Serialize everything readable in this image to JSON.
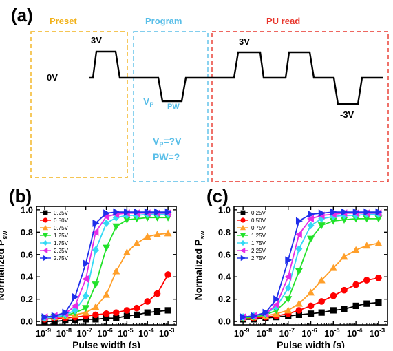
{
  "panel_a": {
    "label": "(a)",
    "sections": [
      {
        "title": "Preset",
        "color": "#F2B21B"
      },
      {
        "title": "Program",
        "color": "#58BEE8"
      },
      {
        "title": "PU read",
        "color": "#E8352B"
      }
    ],
    "annotations": {
      "zero_v": "0V",
      "preset_pulse": "3V",
      "read_pos": "3V",
      "read_neg": "-3V",
      "vp_main": "V",
      "vp_sub": "P",
      "pw_label": "PW",
      "vp_q_main": "V",
      "vp_q_sub": "P",
      "vp_q_rest": "=?V",
      "pw_q": "PW=?"
    }
  },
  "chart_data": [
    {
      "type": "line",
      "panel_label": "(b)",
      "xlabel": "Pulse width (s)",
      "ylabel_main": "Normalized P",
      "ylabel_sub": "sw",
      "xscale": "log",
      "x": [
        1e-09,
        3e-09,
        1e-08,
        3e-08,
        1e-07,
        3e-07,
        1e-06,
        3e-06,
        1e-05,
        3e-05,
        0.0001,
        0.0003,
        0.001
      ],
      "xlim": [
        3.98e-10,
        0.0025
      ],
      "ylim": [
        -0.03,
        1.03
      ],
      "xticks": [
        "10^-9",
        "10^-8",
        "10^-7",
        "10^-6",
        "10^-5",
        "10^-4",
        "10^-3"
      ],
      "yticks": [
        "0.0",
        "0.2",
        "0.4",
        "0.6",
        "0.8",
        "1.0"
      ],
      "legend_placement": "top-left",
      "series": [
        {
          "name": "0.25V",
          "color": "#000000",
          "marker": "square",
          "values": [
            0.0,
            0.0,
            0.01,
            0.01,
            0.02,
            0.02,
            0.03,
            0.03,
            0.05,
            0.06,
            0.08,
            0.09,
            0.1
          ]
        },
        {
          "name": "0.50V",
          "color": "#FF0000",
          "marker": "circle",
          "values": [
            0.02,
            0.03,
            0.03,
            0.04,
            0.05,
            0.06,
            0.07,
            0.08,
            0.1,
            0.12,
            0.18,
            0.25,
            0.42
          ]
        },
        {
          "name": "0.75V",
          "color": "#FF9F2A",
          "marker": "triangle-up",
          "values": [
            0.03,
            0.04,
            0.05,
            0.06,
            0.08,
            0.13,
            0.24,
            0.45,
            0.62,
            0.7,
            0.76,
            0.78,
            0.79
          ]
        },
        {
          "name": "1.25V",
          "color": "#22E22A",
          "marker": "triangle-down",
          "values": [
            0.03,
            0.04,
            0.05,
            0.08,
            0.12,
            0.33,
            0.66,
            0.85,
            0.91,
            0.92,
            0.93,
            0.93,
            0.93
          ]
        },
        {
          "name": "1.75V",
          "color": "#33D9F5",
          "marker": "diamond",
          "values": [
            0.03,
            0.04,
            0.06,
            0.1,
            0.23,
            0.64,
            0.88,
            0.93,
            0.95,
            0.95,
            0.96,
            0.96,
            0.96
          ]
        },
        {
          "name": "2.25V",
          "color": "#E62BE6",
          "marker": "triangle-left",
          "values": [
            0.04,
            0.05,
            0.07,
            0.14,
            0.38,
            0.8,
            0.94,
            0.96,
            0.97,
            0.97,
            0.97,
            0.97,
            0.97
          ]
        },
        {
          "name": "2.75V",
          "color": "#1F2FEB",
          "marker": "triangle-right",
          "values": [
            0.04,
            0.05,
            0.08,
            0.22,
            0.52,
            0.88,
            0.97,
            0.98,
            0.98,
            0.98,
            0.98,
            0.98,
            0.98
          ]
        }
      ]
    },
    {
      "type": "line",
      "panel_label": "(c)",
      "xlabel": "Pulse width (s)",
      "ylabel_main": "Normalized P",
      "ylabel_sub": "sw",
      "xscale": "log",
      "x": [
        1e-09,
        3e-09,
        1e-08,
        3e-08,
        1e-07,
        3e-07,
        1e-06,
        3e-06,
        1e-05,
        3e-05,
        0.0001,
        0.0003,
        0.001
      ],
      "xlim": [
        3.98e-10,
        0.0025
      ],
      "ylim": [
        -0.03,
        1.03
      ],
      "xticks": [
        "10^-9",
        "10^-8",
        "10^-7",
        "10^-6",
        "10^-5",
        "10^-4",
        "10^-3"
      ],
      "yticks": [
        "0.0",
        "0.2",
        "0.4",
        "0.6",
        "0.8",
        "1.0"
      ],
      "legend_placement": "top-left",
      "series": [
        {
          "name": "0.25V",
          "color": "#000000",
          "marker": "square",
          "values": [
            0.02,
            0.02,
            0.03,
            0.04,
            0.05,
            0.06,
            0.07,
            0.08,
            0.1,
            0.11,
            0.14,
            0.16,
            0.17
          ]
        },
        {
          "name": "0.50V",
          "color": "#FF0000",
          "marker": "circle",
          "values": [
            0.03,
            0.03,
            0.04,
            0.05,
            0.07,
            0.1,
            0.14,
            0.18,
            0.23,
            0.28,
            0.33,
            0.37,
            0.39
          ]
        },
        {
          "name": "0.75V",
          "color": "#FF9F2A",
          "marker": "triangle-up",
          "values": [
            0.03,
            0.04,
            0.05,
            0.07,
            0.1,
            0.16,
            0.26,
            0.37,
            0.48,
            0.58,
            0.64,
            0.68,
            0.7
          ]
        },
        {
          "name": "1.25V",
          "color": "#22E22A",
          "marker": "triangle-down",
          "values": [
            0.03,
            0.04,
            0.06,
            0.1,
            0.2,
            0.45,
            0.74,
            0.86,
            0.9,
            0.91,
            0.92,
            0.92,
            0.92
          ]
        },
        {
          "name": "1.75V",
          "color": "#33D9F5",
          "marker": "diamond",
          "values": [
            0.04,
            0.05,
            0.07,
            0.13,
            0.3,
            0.65,
            0.86,
            0.92,
            0.94,
            0.95,
            0.95,
            0.96,
            0.96
          ]
        },
        {
          "name": "2.25V",
          "color": "#E62BE6",
          "marker": "triangle-left",
          "values": [
            0.04,
            0.05,
            0.07,
            0.15,
            0.4,
            0.78,
            0.92,
            0.95,
            0.96,
            0.97,
            0.97,
            0.97,
            0.97
          ]
        },
        {
          "name": "2.75V",
          "color": "#1F2FEB",
          "marker": "triangle-right",
          "values": [
            0.04,
            0.05,
            0.08,
            0.2,
            0.55,
            0.9,
            0.96,
            0.97,
            0.98,
            0.98,
            0.98,
            0.98,
            0.98
          ]
        }
      ]
    }
  ]
}
